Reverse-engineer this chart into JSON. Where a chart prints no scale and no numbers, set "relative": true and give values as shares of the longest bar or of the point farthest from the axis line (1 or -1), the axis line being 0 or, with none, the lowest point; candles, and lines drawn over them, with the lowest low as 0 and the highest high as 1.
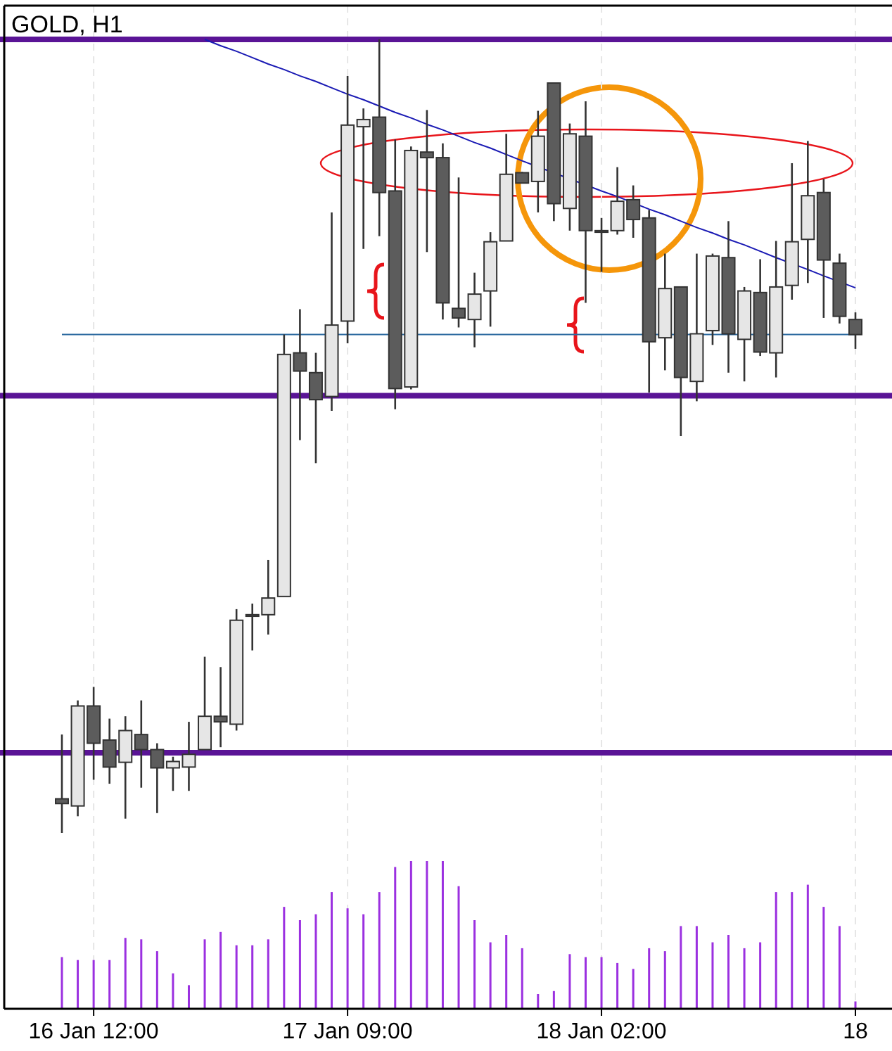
{
  "chart_data": [
    {
      "type": "candlestick",
      "title": "GOLD, H1",
      "relative": true,
      "tick_labels": false,
      "grid": "x",
      "ohlc": [
        [
          0.043,
          0.124,
          0,
          0.037
        ],
        [
          0.034,
          0.167,
          0.021,
          0.16
        ],
        [
          0.16,
          0.184,
          0.067,
          0.113
        ],
        [
          0.117,
          0.144,
          0.062,
          0.083
        ],
        [
          0.089,
          0.147,
          0.018,
          0.129
        ],
        [
          0.124,
          0.167,
          0.057,
          0.105
        ],
        [
          0.105,
          0.113,
          0.025,
          0.082
        ],
        [
          0.082,
          0.096,
          0.053,
          0.09
        ],
        [
          0.083,
          0.14,
          0.053,
          0.099
        ],
        [
          0.105,
          0.222,
          0.105,
          0.147
        ],
        [
          0.147,
          0.209,
          0.108,
          0.14
        ],
        [
          0.137,
          0.282,
          0.129,
          0.268
        ],
        [
          0.275,
          0.289,
          0.23,
          0.273
        ],
        [
          0.275,
          0.344,
          0.25,
          0.296
        ],
        [
          0.298,
          0.628,
          0.298,
          0.603
        ],
        [
          0.605,
          0.66,
          0.495,
          0.582
        ],
        [
          0.58,
          0.605,
          0.466,
          0.546
        ],
        [
          0.55,
          0.782,
          0.532,
          0.64
        ],
        [
          0.645,
          0.954,
          0.617,
          0.892
        ],
        [
          0.89,
          0.913,
          0.736,
          0.899
        ],
        [
          0.902,
          1,
          0.752,
          0.807
        ],
        [
          0.809,
          0.874,
          0.534,
          0.56
        ],
        [
          0.562,
          0.865,
          0.559,
          0.86
        ],
        [
          0.858,
          0.911,
          0.732,
          0.851
        ],
        [
          0.851,
          0.869,
          0.647,
          0.668
        ],
        [
          0.661,
          0.826,
          0.637,
          0.649
        ],
        [
          0.647,
          0.706,
          0.612,
          0.679
        ],
        [
          0.683,
          0.757,
          0.638,
          0.745
        ],
        [
          0.746,
          0.881,
          0.746,
          0.83
        ],
        [
          0.832,
          0.833,
          0.819,
          0.819
        ],
        [
          0.821,
          0.91,
          0.782,
          0.878
        ],
        [
          0.945,
          0.945,
          0.771,
          0.793
        ],
        [
          0.787,
          0.894,
          0.759,
          0.881
        ],
        [
          0.878,
          0.922,
          0.668,
          0.759
        ],
        [
          0.759,
          0.775,
          0.707,
          0.757
        ],
        [
          0.759,
          0.839,
          0.754,
          0.796
        ],
        [
          0.798,
          0.816,
          0.75,
          0.773
        ],
        [
          0.775,
          0.785,
          0.555,
          0.619
        ],
        [
          0.624,
          0.73,
          0.583,
          0.686
        ],
        [
          0.688,
          0.688,
          0.5,
          0.574
        ],
        [
          0.569,
          0.73,
          0.544,
          0.629
        ],
        [
          0.633,
          0.73,
          0.615,
          0.727
        ],
        [
          0.725,
          0.771,
          0.58,
          0.629
        ],
        [
          0.622,
          0.688,
          0.569,
          0.683
        ],
        [
          0.681,
          0.723,
          0.601,
          0.606
        ],
        [
          0.605,
          0.746,
          0.574,
          0.688
        ],
        [
          0.69,
          0.844,
          0.672,
          0.745
        ],
        [
          0.748,
          0.872,
          0.693,
          0.803
        ],
        [
          0.807,
          0.824,
          0.649,
          0.722
        ],
        [
          0.718,
          0.73,
          0.642,
          0.651
        ],
        [
          0.647,
          0.656,
          0.61,
          0.628
        ]
      ],
      "series": [
        {
          "type": "line",
          "color": "#1a1ab4",
          "values": [
            null,
            null,
            null,
            null,
            null,
            null,
            null,
            null,
            null,
            1,
            0.992,
            0.985,
            0.977,
            0.969,
            0.962,
            0.954,
            0.947,
            0.939,
            0.931,
            0.924,
            0.916,
            0.908,
            0.901,
            0.893,
            0.886,
            0.878,
            0.87,
            0.863,
            0.855,
            0.847,
            null,
            null,
            null,
            null,
            0.809,
            0.802,
            0.794,
            0.786,
            0.779,
            0.771,
            0.763,
            0.756,
            0.748,
            0.741,
            0.733,
            0.725,
            null,
            0.71,
            0.702,
            null,
            0.687
          ]
        },
        {
          "type": "line",
          "color": "#2d6aa0",
          "values": [
            0.628,
            0.628,
            0.628,
            0.628,
            0.628,
            0.628,
            0.628,
            0.628,
            0.628,
            0.628,
            0.628,
            0.628,
            0.628,
            0.628,
            0.628,
            0.628,
            0.628,
            null,
            0.628,
            0.628,
            0.628,
            null,
            null,
            0.628,
            0.628,
            0.628,
            0.628,
            0.628,
            0.628,
            0.628,
            0.628,
            0.628,
            0.628,
            0.628,
            0.628,
            0.628,
            0.628,
            null,
            null,
            null,
            null,
            0.628,
            0.628,
            null,
            null,
            null,
            0.628,
            0.628,
            0.628,
            0.628,
            0.628
          ]
        }
      ],
      "ref_lines": [
        {
          "axis": "y",
          "value": 1,
          "color": "#5a1496"
        },
        {
          "axis": "y",
          "value": 0.551,
          "color": "#5a1496"
        },
        {
          "axis": "y",
          "value": 0.101,
          "color": "#5a1496"
        }
      ]
    },
    {
      "type": "bar",
      "relative": true,
      "tick_labels": "x",
      "grid": "x",
      "color": "#9b30e0",
      "categories": [
        null,
        null,
        "16 Jan 12:00",
        null,
        null,
        null,
        null,
        null,
        null,
        null,
        null,
        null,
        null,
        null,
        null,
        null,
        null,
        null,
        "17 Jan 09:00",
        null,
        null,
        null,
        null,
        null,
        null,
        null,
        null,
        null,
        null,
        null,
        null,
        null,
        null,
        null,
        "18 Jan 02:00",
        null,
        null,
        null,
        null,
        null,
        null,
        null,
        null,
        null,
        null,
        null,
        null,
        null,
        null,
        null,
        "18"
      ],
      "values": [
        0.35,
        0.33,
        0.33,
        0.33,
        0.48,
        0.47,
        0.39,
        0.24,
        0.16,
        0.47,
        0.52,
        0.43,
        0.43,
        0.47,
        0.69,
        0.6,
        0.64,
        0.79,
        0.68,
        0.64,
        0.79,
        0.96,
        1,
        1,
        1,
        0.83,
        0.6,
        0.45,
        0.5,
        0.41,
        0.1,
        0.12,
        0.37,
        0.35,
        0.35,
        0.31,
        0.27,
        0.41,
        0.39,
        0.56,
        0.56,
        0.45,
        0.5,
        0.41,
        0.45,
        0.79,
        0.79,
        0.84,
        0.69,
        0.56,
        0.05
      ]
    }
  ]
}
